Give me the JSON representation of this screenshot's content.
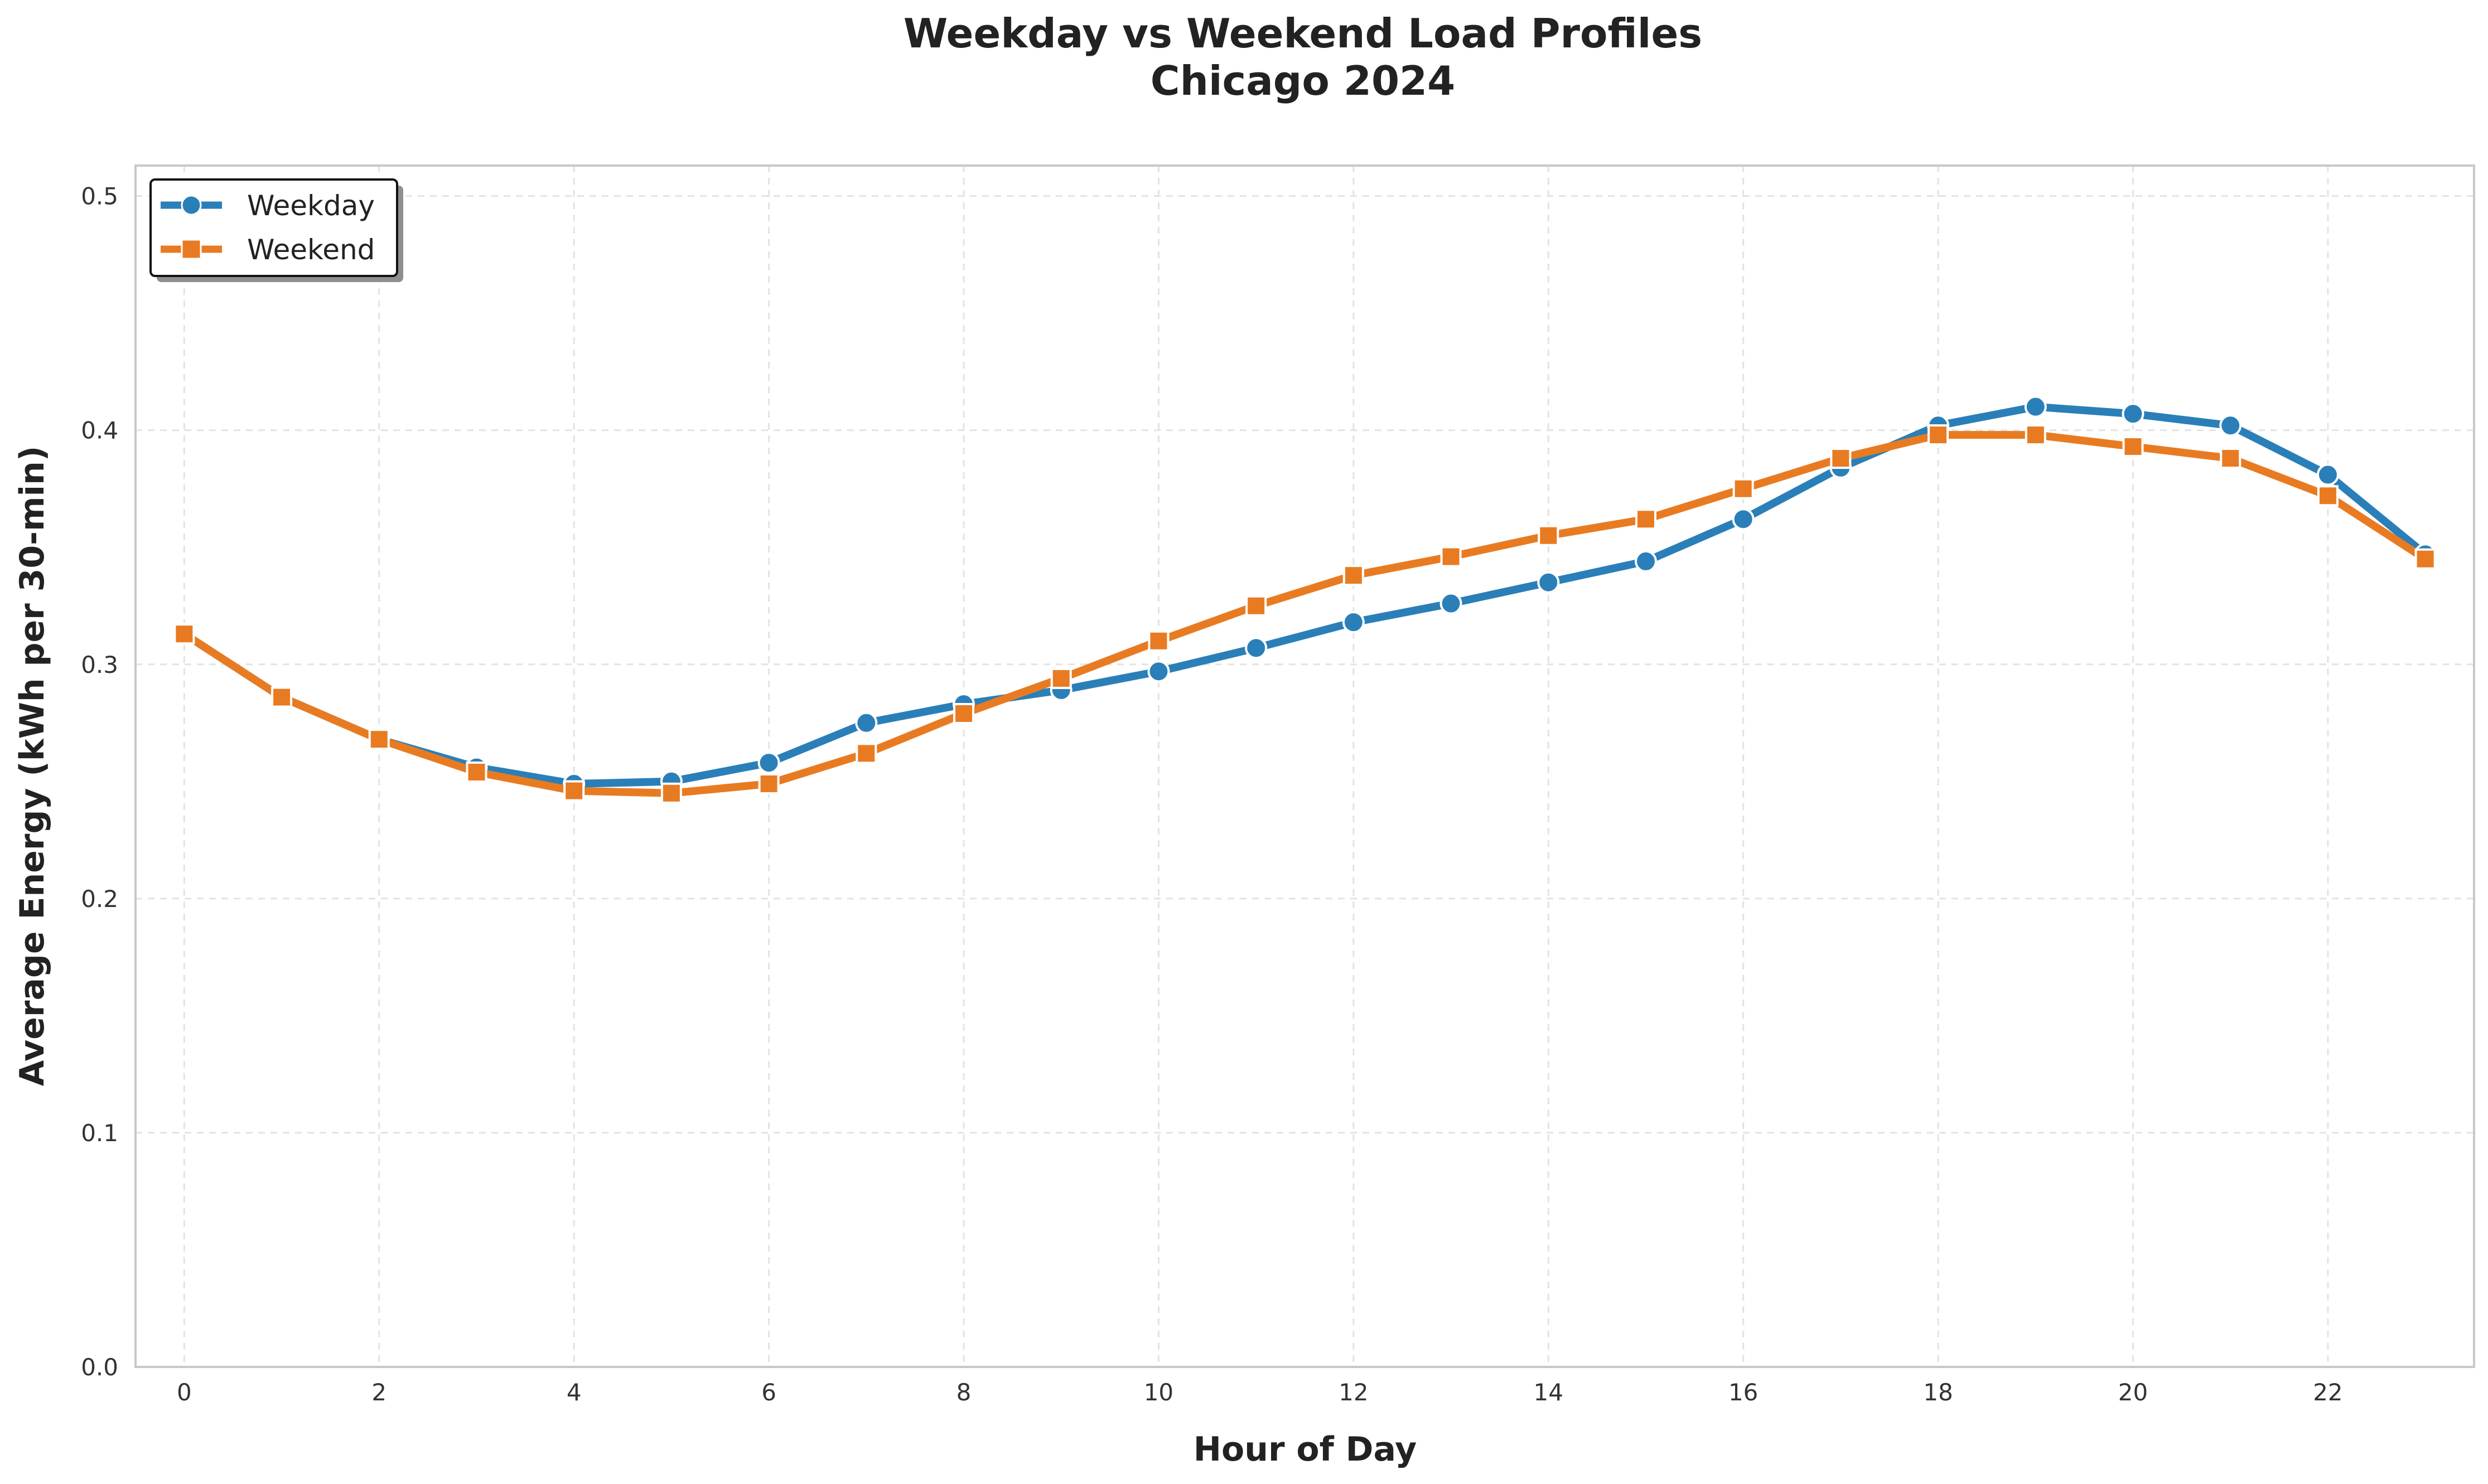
{
  "chart_data": {
    "type": "line",
    "title": [
      "Weekday vs Weekend Load Profiles",
      "Chicago 2024"
    ],
    "xlabel": "Hour of Day",
    "ylabel": "Average Energy (kWh per 30-min)",
    "xlim": [
      -0.5,
      23.5
    ],
    "ylim": [
      0,
      0.513
    ],
    "xticks": [
      0,
      2,
      4,
      6,
      8,
      10,
      12,
      14,
      16,
      18,
      20,
      22
    ],
    "yticks": [
      0.0,
      0.1,
      0.2,
      0.3,
      0.4,
      0.5
    ],
    "grid": true,
    "legend_position": "upper left",
    "x": [
      0,
      1,
      2,
      3,
      4,
      5,
      6,
      7,
      8,
      9,
      10,
      11,
      12,
      13,
      14,
      15,
      16,
      17,
      18,
      19,
      20,
      21,
      22,
      23
    ],
    "series": [
      {
        "name": "Weekday",
        "color": "#2a7fb8",
        "marker": "circle",
        "values": [
          0.313,
          0.286,
          0.268,
          0.256,
          0.249,
          0.25,
          0.258,
          0.275,
          0.283,
          0.289,
          0.297,
          0.307,
          0.318,
          0.326,
          0.335,
          0.344,
          0.362,
          0.384,
          0.402,
          0.41,
          0.407,
          0.402,
          0.381,
          0.347
        ]
      },
      {
        "name": "Weekend",
        "color": "#e87b22",
        "marker": "square",
        "values": [
          0.313,
          0.286,
          0.268,
          0.254,
          0.246,
          0.245,
          0.249,
          0.262,
          0.279,
          0.294,
          0.31,
          0.325,
          0.338,
          0.346,
          0.355,
          0.362,
          0.375,
          0.388,
          0.398,
          0.398,
          0.393,
          0.388,
          0.372,
          0.345
        ]
      }
    ]
  }
}
